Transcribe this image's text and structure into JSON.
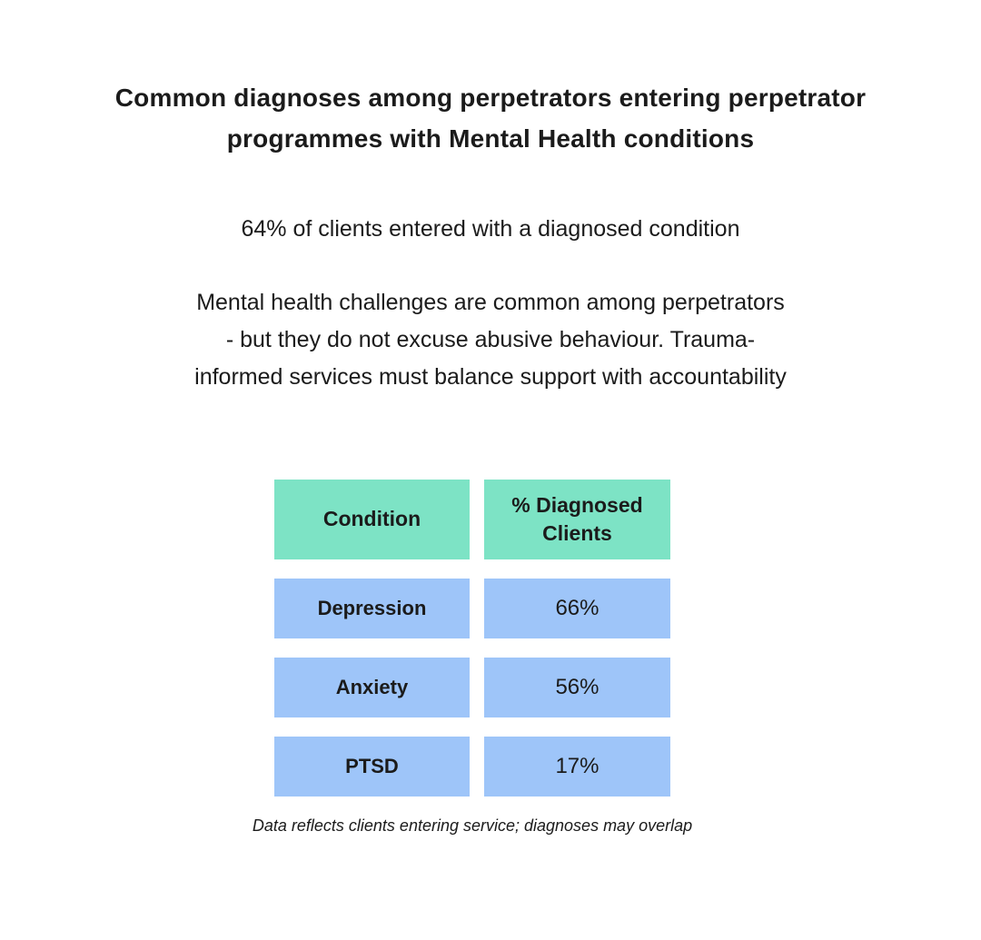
{
  "title": "Common diagnoses among perpetrators entering perpetrator programmes with Mental Health conditions",
  "subtitle": "64% of clients entered with a diagnosed condition",
  "description": "Mental health challenges are common among perpetrators - but they do not excuse abusive behaviour. Trauma-informed services must balance support with accountability",
  "footnote": "Data reflects clients entering service; diagnoses may overlap",
  "colors": {
    "header_bg": "#7de3c5",
    "cell_bg": "#9ec5f9",
    "text": "#1b1b1b",
    "background": "#ffffff"
  },
  "chart_data": {
    "type": "table",
    "title": "Common diagnoses among perpetrators entering perpetrator programmes with Mental Health conditions",
    "subtitle": "64% of clients entered with a diagnosed condition",
    "columns": [
      "Condition",
      "% Diagnosed Clients"
    ],
    "rows": [
      {
        "label": "Depression",
        "value": "66%"
      },
      {
        "label": "Anxiety",
        "value": "56%"
      },
      {
        "label": "PTSD",
        "value": "17%"
      }
    ],
    "footnote": "Data reflects clients entering service; diagnoses may overlap",
    "legend_position": "none",
    "grid": false
  }
}
